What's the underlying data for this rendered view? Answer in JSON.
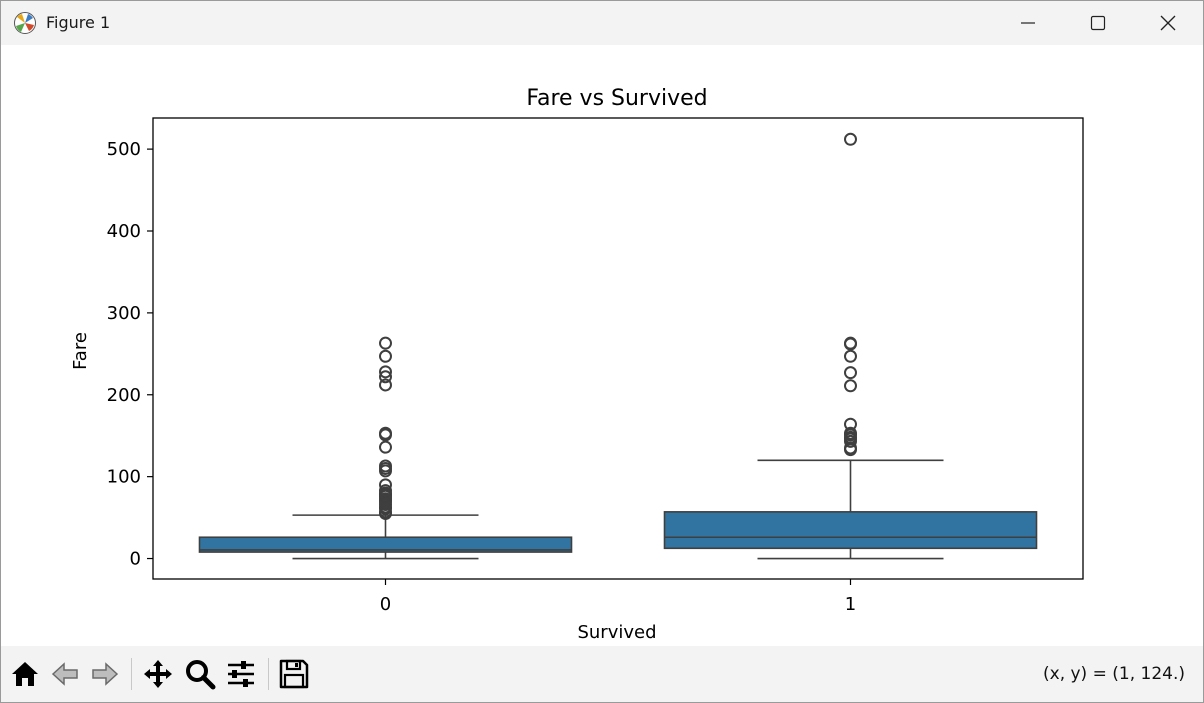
{
  "window": {
    "title": "Figure 1"
  },
  "toolbar": {
    "coords_text": "(x, y) = (1, 124.)"
  },
  "icons": {
    "app": "matplotlib-icon",
    "minimize": "minimize-icon",
    "maximize": "maximize-icon",
    "close": "close-icon",
    "home": "home-icon",
    "back": "back-arrow-icon",
    "forward": "forward-arrow-icon",
    "pan": "pan-icon",
    "zoom": "zoom-icon",
    "configure": "configure-subplots-icon",
    "save": "save-icon"
  },
  "chart_data": {
    "type": "box",
    "title": "Fare vs Survived",
    "xlabel": "Survived",
    "ylabel": "Fare",
    "categories": [
      "0",
      "1"
    ],
    "ylim": [
      -25,
      538
    ],
    "yticks": [
      0,
      100,
      200,
      300,
      400,
      500
    ],
    "grid": false,
    "box_color": "#3274a1",
    "boxes": [
      {
        "category": "0",
        "whisker_low": 0,
        "q1": 7.9,
        "median": 10.5,
        "q3": 26.0,
        "whisker_high": 53,
        "outliers": [
          55,
          57,
          61,
          63,
          66,
          69,
          71,
          73,
          76,
          77,
          78,
          80,
          83,
          90,
          107,
          110,
          113,
          136,
          151,
          153,
          212,
          222,
          228,
          247,
          263
        ]
      },
      {
        "category": "1",
        "whisker_low": 0,
        "q1": 12.5,
        "median": 26.0,
        "q3": 57.0,
        "whisker_high": 120,
        "outliers": [
          133,
          135,
          143,
          146,
          148,
          151,
          153,
          164,
          211,
          227,
          247,
          262,
          263,
          512
        ]
      }
    ]
  }
}
